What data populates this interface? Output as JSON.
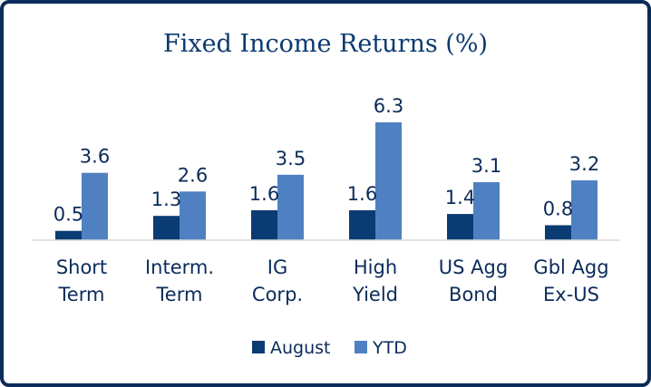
{
  "chart_data": {
    "type": "bar",
    "title": "Fixed Income Returns (%)",
    "categories": [
      [
        "Short",
        "Term"
      ],
      [
        "Interm.",
        "Term"
      ],
      [
        "IG",
        "Corp."
      ],
      [
        "High",
        "Yield"
      ],
      [
        "US Agg",
        "Bond"
      ],
      [
        "Gbl Agg",
        "Ex-US"
      ]
    ],
    "series": [
      {
        "name": "August",
        "color": "#0b3b73",
        "values": [
          0.5,
          1.3,
          1.6,
          1.6,
          1.4,
          0.8
        ]
      },
      {
        "name": "YTD",
        "color": "#4f81c2",
        "values": [
          3.6,
          2.6,
          3.5,
          6.3,
          3.1,
          3.2
        ]
      }
    ],
    "ylim": [
      0,
      7.0
    ],
    "grid": false,
    "legend": "bottom-center"
  }
}
